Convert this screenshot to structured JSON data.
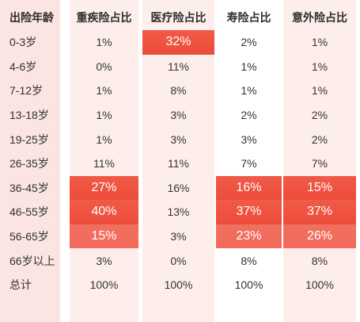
{
  "headers": {
    "age": "出险年龄",
    "critical_illness": "重疾险占比",
    "medical": "医疗险占比",
    "life": "寿险占比",
    "accident": "意外险占比"
  },
  "rows": [
    {
      "age": "0-3岁",
      "ci": "1%",
      "med": "32%",
      "life": "2%",
      "acc": "1%"
    },
    {
      "age": "4-6岁",
      "ci": "0%",
      "med": "11%",
      "life": "1%",
      "acc": "1%"
    },
    {
      "age": "7-12岁",
      "ci": "1%",
      "med": "8%",
      "life": "1%",
      "acc": "1%"
    },
    {
      "age": "13-18岁",
      "ci": "1%",
      "med": "3%",
      "life": "2%",
      "acc": "2%"
    },
    {
      "age": "19-25岁",
      "ci": "1%",
      "med": "3%",
      "life": "3%",
      "acc": "2%"
    },
    {
      "age": "26-35岁",
      "ci": "11%",
      "med": "11%",
      "life": "7%",
      "acc": "7%"
    },
    {
      "age": "36-45岁",
      "ci": "27%",
      "med": "16%",
      "life": "16%",
      "acc": "15%"
    },
    {
      "age": "46-55岁",
      "ci": "40%",
      "med": "13%",
      "life": "37%",
      "acc": "37%"
    },
    {
      "age": "56-65岁",
      "ci": "15%",
      "med": "3%",
      "life": "23%",
      "acc": "26%"
    },
    {
      "age": "66岁以上",
      "ci": "3%",
      "med": "0%",
      "life": "8%",
      "acc": "8%"
    },
    {
      "age": "总计",
      "ci": "100%",
      "med": "100%",
      "life": "100%",
      "acc": "100%"
    }
  ],
  "colors": {
    "highlight": "#ef5543",
    "column_tint": "#fdeeec",
    "age_column_tint": "#fbe5e2"
  }
}
